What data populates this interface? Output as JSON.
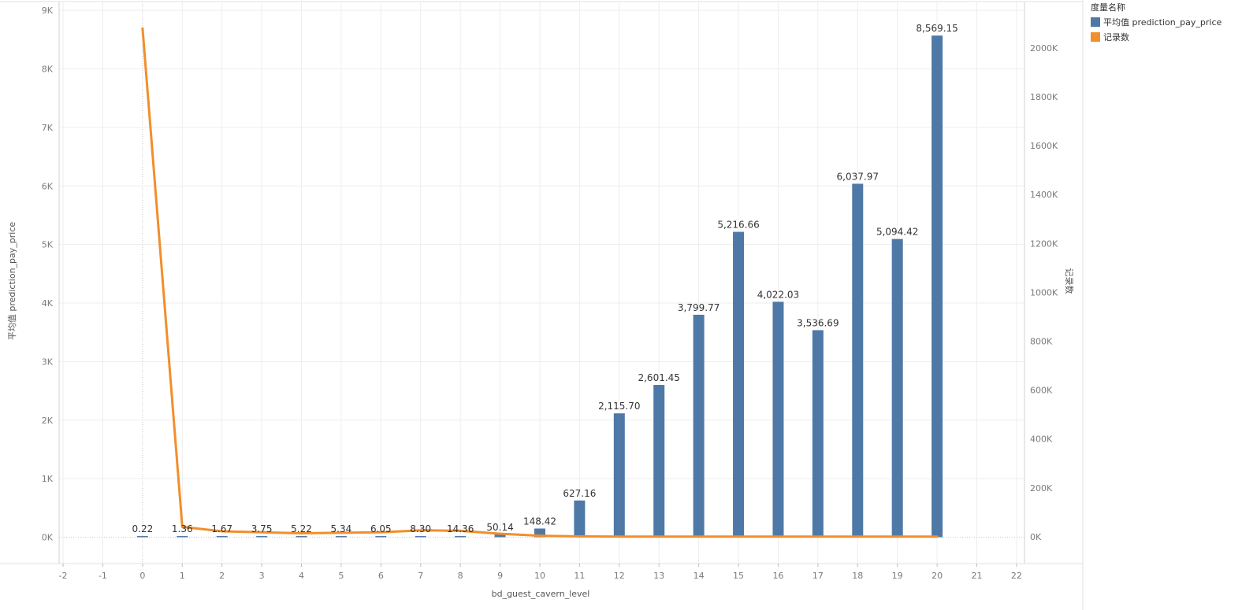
{
  "legend": {
    "title": "度量名称",
    "items": [
      {
        "label": "平均值 prediction_pay_price",
        "color": "#4e79a7"
      },
      {
        "label": "记录数",
        "color": "#f28e2b"
      }
    ]
  },
  "chart_data": {
    "type": "bar",
    "combo": "bar + line, dual axis",
    "xlabel": "bd_guest_cavern_level",
    "ylabel": "平均值 prediction_pay_price",
    "y2label": "记录数",
    "x_ticks": [
      -2,
      -1,
      0,
      1,
      2,
      3,
      4,
      5,
      6,
      7,
      8,
      9,
      10,
      11,
      12,
      13,
      14,
      15,
      16,
      17,
      18,
      19,
      20,
      21,
      22
    ],
    "xlim": [
      -2.1,
      22.2
    ],
    "y_ticks": [
      "0K",
      "1K",
      "2K",
      "3K",
      "4K",
      "5K",
      "6K",
      "7K",
      "8K",
      "9K"
    ],
    "ylim": [
      -450,
      9150
    ],
    "y2_ticks": [
      "0K",
      "200K",
      "400K",
      "600K",
      "800K",
      "1000K",
      "1200K",
      "1400K",
      "1600K",
      "1800K",
      "2000K"
    ],
    "y2lim": [
      -110000,
      2190000
    ],
    "grid": true,
    "legend_position": "top-right",
    "x": [
      0,
      1,
      2,
      3,
      4,
      5,
      6,
      7,
      8,
      9,
      10,
      11,
      12,
      13,
      14,
      15,
      16,
      17,
      18,
      19,
      20
    ],
    "series": [
      {
        "name": "平均值 prediction_pay_price",
        "type": "bar",
        "axis": "left",
        "color": "#4e79a7",
        "values": [
          0.22,
          1.36,
          1.67,
          3.75,
          5.22,
          5.34,
          6.05,
          8.3,
          14.36,
          50.14,
          148.42,
          627.16,
          2115.7,
          2601.45,
          3799.77,
          5216.66,
          4022.03,
          3536.69,
          6037.97,
          5094.42,
          8569.15
        ],
        "labels": [
          "0.22",
          "1.36",
          "1.67",
          "3.75",
          "5.22",
          "5.34",
          "6.05",
          "8.30",
          "14.36",
          "50.14",
          "148.42",
          "627.16",
          "2,115.70",
          "2,601.45",
          "3,799.77",
          "5,216.66",
          "4,022.03",
          "3,536.69",
          "6,037.97",
          "5,094.42",
          "8,569.15"
        ]
      },
      {
        "name": "记录数",
        "type": "line",
        "axis": "right",
        "color": "#f28e2b",
        "values": [
          2080000,
          40000,
          22000,
          18000,
          14000,
          16000,
          18000,
          26000,
          24000,
          12000,
          4000,
          1000,
          500,
          400,
          300,
          200,
          200,
          100,
          100,
          100,
          100
        ]
      }
    ]
  }
}
